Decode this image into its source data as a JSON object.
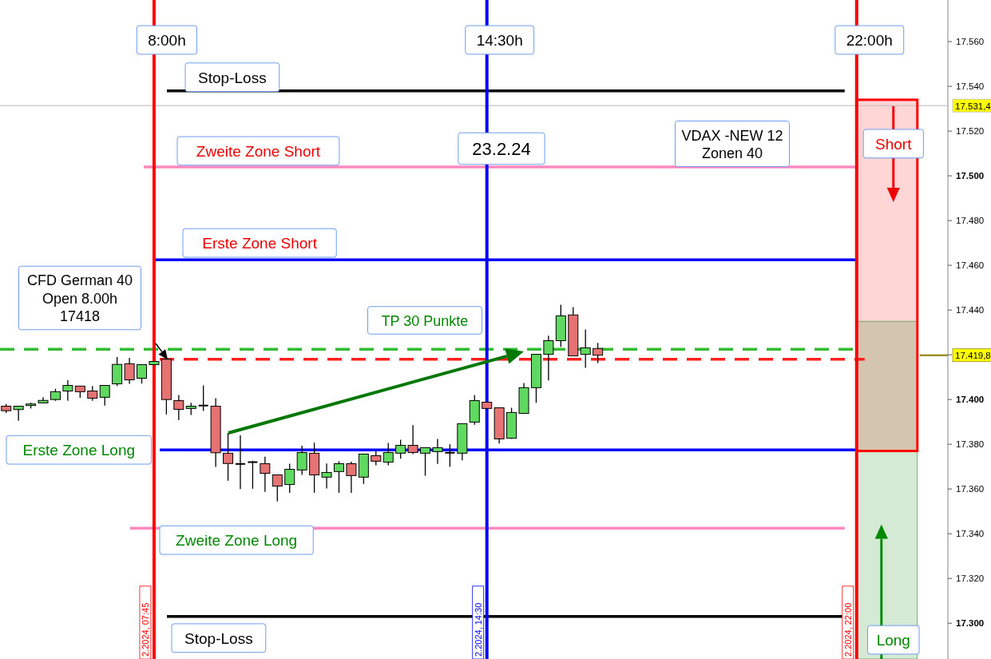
{
  "chart_data": {
    "type": "candlestick",
    "x": [
      4.75,
      5,
      5.25,
      5.5,
      5.75,
      6,
      6.25,
      6.5,
      6.75,
      7,
      7.25,
      7.5,
      7.75,
      8,
      8.25,
      8.5,
      8.75,
      9,
      9.25,
      9.5,
      9.75,
      10,
      10.25,
      10.5,
      10.75,
      11,
      11.25,
      11.5,
      11.75,
      12,
      12.25,
      12.5,
      12.75,
      13,
      13.25,
      13.5,
      13.75,
      14,
      14.25,
      14.5,
      14.75,
      15,
      15.25,
      15.5,
      15.75,
      16,
      16.25,
      16.5,
      16.75
    ],
    "ohlc": [
      [
        17397,
        17398,
        17394,
        17395
      ],
      [
        17395.5,
        17397,
        17390.5,
        17397
      ],
      [
        17397.3,
        17398.6,
        17396,
        17398
      ],
      [
        17398.5,
        17401,
        17398.5,
        17399.6
      ],
      [
        17400,
        17404.8,
        17399.4,
        17403.5
      ],
      [
        17403.8,
        17408.6,
        17399.4,
        17406.3
      ],
      [
        17406,
        17406,
        17400.8,
        17403.5
      ],
      [
        17403.8,
        17406,
        17399.4,
        17400.6
      ],
      [
        17401,
        17406.3,
        17397.3,
        17406.3
      ],
      [
        17407,
        17419,
        17406,
        17415.7
      ],
      [
        17416,
        17418.6,
        17407,
        17408.8
      ],
      [
        17409.5,
        17415.6,
        17407.1,
        17415.6
      ],
      [
        17415.6,
        17417,
        17415.6,
        17417
      ],
      [
        17418,
        17418,
        17393.3,
        17400
      ],
      [
        17399.5,
        17402,
        17390.8,
        17395.6
      ],
      [
        17396,
        17398.5,
        17393.1,
        17397
      ],
      [
        17397.3,
        17406.3,
        17394.9,
        17397.3
      ],
      [
        17397,
        17400.6,
        17369.9,
        17376.2
      ],
      [
        17376,
        17385,
        17363.7,
        17371.4
      ],
      [
        17371.2,
        17384,
        17360,
        17371.2
      ],
      [
        17372,
        17372.6,
        17360.1,
        17372
      ],
      [
        17371.3,
        17374.4,
        17358.7,
        17367
      ],
      [
        17366.3,
        17366.3,
        17354.4,
        17361.3
      ],
      [
        17362,
        17371.3,
        17358.3,
        17368.8
      ],
      [
        17368.5,
        17379.3,
        17366.3,
        17376.3
      ],
      [
        17376,
        17380.7,
        17358.3,
        17366.3
      ],
      [
        17365.3,
        17371.4,
        17360.2,
        17367.4
      ],
      [
        17367.8,
        17372.4,
        17358.3,
        17371.3
      ],
      [
        17371.3,
        17372.2,
        17358.3,
        17366
      ],
      [
        17365.3,
        17375.6,
        17362.3,
        17375.6
      ],
      [
        17374.9,
        17377,
        17370.6,
        17372.4
      ],
      [
        17372,
        17380.6,
        17370.6,
        17376.3
      ],
      [
        17376,
        17382,
        17373.5,
        17379.5
      ],
      [
        17379.5,
        17388.5,
        17375.6,
        17376.3
      ],
      [
        17376,
        17378.5,
        17365.9,
        17378.5
      ],
      [
        17376.7,
        17382.4,
        17371.2,
        17378.5
      ],
      [
        17376.2,
        17380,
        17369.9,
        17376.2
      ],
      [
        17376,
        17389.2,
        17372.8,
        17389.2
      ],
      [
        17389.9,
        17402,
        17388.7,
        17399.5
      ],
      [
        17398.8,
        17398.8,
        17396,
        17396
      ],
      [
        17396.3,
        17396.3,
        17380.3,
        17382.4
      ],
      [
        17382.7,
        17396.3,
        17382.4,
        17394.2
      ],
      [
        17393.8,
        17407.4,
        17393.5,
        17405.3
      ],
      [
        17405.3,
        17420.2,
        17398.5,
        17420.2
      ],
      [
        17420.2,
        17428.5,
        17408.5,
        17426.3
      ],
      [
        17426.3,
        17442.4,
        17423.5,
        17437.4
      ],
      [
        17437.8,
        17441.3,
        17419.5,
        17419.5
      ],
      [
        17420.2,
        17431.3,
        17414.2,
        17423.1
      ],
      [
        17422.8,
        17425.3,
        17416.3,
        17419.8
      ]
    ],
    "colors": [
      "#e57373",
      "#5fd95f",
      "#5fd95f",
      "#5fd95f",
      "#5fd95f",
      "#5fd95f",
      "#e57373",
      "#e57373",
      "#5fd95f",
      "#5fd95f",
      "#e57373",
      "#5fd95f",
      "#5fd95f",
      "#e57373",
      "#e57373",
      "#5fd95f",
      "#000000",
      "#e57373",
      "#e57373",
      "#000000",
      "#000000",
      "#e57373",
      "#e57373",
      "#5fd95f",
      "#5fd95f",
      "#e57373",
      "#5fd95f",
      "#5fd95f",
      "#e57373",
      "#5fd95f",
      "#e57373",
      "#5fd95f",
      "#5fd95f",
      "#e57373",
      "#5fd95f",
      "#5fd95f",
      "#000000",
      "#5fd95f",
      "#5fd95f",
      "#e57373",
      "#e57373",
      "#5fd95f",
      "#5fd95f",
      "#5fd95f",
      "#5fd95f",
      "#5fd95f",
      "#e57373",
      "#5fd95f",
      "#e57373"
    ],
    "xlim": [
      4.625,
      23.85
    ],
    "ylim": [
      17284,
      17578.6
    ],
    "yticks": [
      {
        "value": 17300,
        "label": "17.300"
      },
      {
        "value": 17320,
        "label": "17.320"
      },
      {
        "value": 17340,
        "label": "17.340"
      },
      {
        "value": 17360,
        "label": "17.360"
      },
      {
        "value": 17380,
        "label": "17.380"
      },
      {
        "value": 17400,
        "label": "17.400"
      },
      {
        "value": 17420,
        "label": null
      },
      {
        "value": 17440,
        "label": "17.440"
      },
      {
        "value": 17460,
        "label": "17.460"
      },
      {
        "value": 17480,
        "label": "17.480"
      },
      {
        "value": 17500,
        "label": "17.500"
      },
      {
        "value": 17520,
        "label": "17.520"
      },
      {
        "value": 17540,
        "label": "17.540"
      },
      {
        "value": 17560,
        "label": "17.560"
      }
    ],
    "tick_labels": "y",
    "grid": false,
    "ref_lines": [
      {
        "axis": "x",
        "value": 7.75,
        "label": "8:00h",
        "color": "#ff0000"
      },
      {
        "axis": "x",
        "value": 14.5,
        "label": "14:30h",
        "color": "#0000ff"
      },
      {
        "axis": "x",
        "value": 22,
        "label": "22:00h",
        "color": "#ff0000"
      },
      {
        "axis": "y",
        "value": 17538,
        "label": "Stop-Loss",
        "color": "#000000"
      },
      {
        "axis": "y",
        "value": 17504,
        "label": "Zweite Zone Short",
        "color": "#ff88c0"
      },
      {
        "axis": "y",
        "value": 17462.5,
        "label": "Erste Zone Short",
        "color": "#0000ff"
      },
      {
        "axis": "y",
        "value": 17422.5,
        "color": "#33bb33",
        "line_style": "dashed"
      },
      {
        "axis": "y",
        "value": 17418,
        "color": "#ff2020",
        "line_style": "dashed"
      },
      {
        "axis": "y",
        "value": 17377.5,
        "label": "Erste Zone Long",
        "color": "#0000ff"
      },
      {
        "axis": "y",
        "value": 17342.5,
        "label": "Zweite Zone Long",
        "color": "#ff88c0"
      },
      {
        "axis": "y",
        "value": 17303,
        "label": "Stop-Loss",
        "color": "#000000"
      },
      {
        "axis": "y",
        "value": 17531.4,
        "label": "17.531,4",
        "color": "#b8b8b8"
      },
      {
        "axis": "y",
        "value": 17419.8,
        "label": "17.419,8",
        "color": "#8a7a00"
      }
    ],
    "bands": [
      {
        "axis": "y",
        "from": 17435,
        "to": 17534,
        "label": "Short",
        "color": "#ffd6d6"
      },
      {
        "axis": "y",
        "from": 17377,
        "to": 17435,
        "color": "#d4c5ae"
      },
      {
        "axis": "y",
        "from": 17284,
        "to": 17377,
        "label": "Long",
        "color": "#d5ead5"
      }
    ],
    "annotations": [
      "23.2.24",
      "VDAX -NEW 12\nZonen 40",
      "CFD German 40\nOpen 8.00h\n17418",
      "TP 30 Punkte",
      {
        "text": "2.2024, 07:45",
        "x": 7.75
      },
      {
        "text": "2.2024, 14:30",
        "x": 14.5
      },
      {
        "text": "2.2024, 22:00",
        "x": 22
      }
    ]
  }
}
